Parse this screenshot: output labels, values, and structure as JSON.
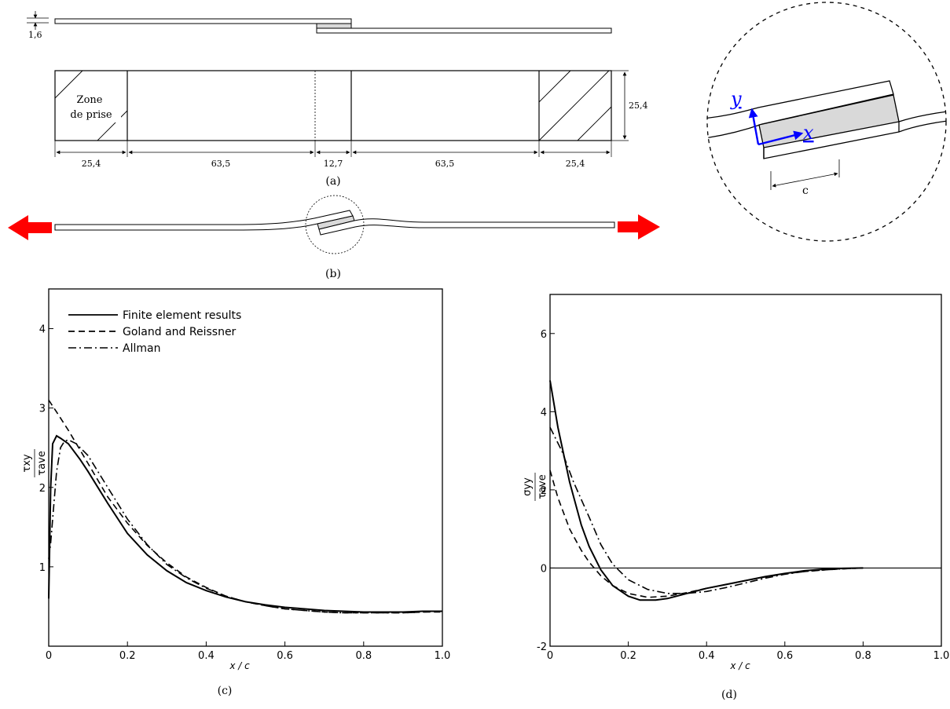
{
  "fig_a": {
    "thickness_label": "1,6",
    "grip_zone_line1": "Zone",
    "grip_zone_line2": "de prise",
    "width_label": "25,4",
    "dims": [
      "25,4",
      "63,5",
      "12,7",
      "63,5",
      "25,4"
    ],
    "caption": "(a)"
  },
  "fig_b": {
    "caption": "(b)"
  },
  "zoom": {
    "y_label": "y",
    "x_label": "x",
    "c_label": "c"
  },
  "colors": {
    "arrow": "#ff0000",
    "axis": "#0000ff",
    "adhesive": "#d9d9d9"
  },
  "chart_data": [
    {
      "type": "line",
      "caption": "(c)",
      "xlabel": "x / c",
      "ylabel_num": "τxy",
      "ylabel_den": "τave",
      "xlim": [
        0,
        1.0
      ],
      "ylim": [
        0,
        4.5
      ],
      "xticks": [
        "0",
        "0.2",
        "0.4",
        "0.6",
        "0.8",
        "1.0"
      ],
      "xtick_values": [
        0,
        0.2,
        0.4,
        0.6,
        0.8,
        1.0
      ],
      "yticks": [
        "1",
        "2",
        "3",
        "4"
      ],
      "ytick_values": [
        1,
        2,
        3,
        4
      ],
      "legend": [
        "Finite element results",
        "Goland and Reissner",
        "Allman"
      ],
      "series": [
        {
          "name": "Finite element results",
          "style": "solid",
          "x": [
            0,
            0.005,
            0.01,
            0.02,
            0.03,
            0.05,
            0.08,
            0.1,
            0.15,
            0.2,
            0.25,
            0.3,
            0.35,
            0.4,
            0.45,
            0.5,
            0.55,
            0.6,
            0.65,
            0.7,
            0.75,
            0.8,
            0.85,
            0.9,
            0.95,
            1.0
          ],
          "y": [
            0.6,
            2.0,
            2.55,
            2.65,
            2.62,
            2.55,
            2.35,
            2.2,
            1.8,
            1.42,
            1.15,
            0.95,
            0.8,
            0.7,
            0.62,
            0.56,
            0.52,
            0.49,
            0.47,
            0.45,
            0.44,
            0.43,
            0.43,
            0.43,
            0.44,
            0.44
          ]
        },
        {
          "name": "Goland and Reissner",
          "style": "dashed",
          "x": [
            0,
            0.02,
            0.05,
            0.1,
            0.15,
            0.2,
            0.25,
            0.3,
            0.35,
            0.4,
            0.45,
            0.5,
            0.55,
            0.6,
            0.65,
            0.7,
            0.75,
            0.8,
            0.85,
            0.9,
            0.95,
            1.0
          ],
          "y": [
            3.1,
            2.95,
            2.72,
            2.3,
            1.88,
            1.55,
            1.27,
            1.05,
            0.87,
            0.74,
            0.63,
            0.56,
            0.51,
            0.47,
            0.45,
            0.43,
            0.42,
            0.42,
            0.42,
            0.42,
            0.43,
            0.43
          ]
        },
        {
          "name": "Allman",
          "style": "dashdot",
          "x": [
            0,
            0.005,
            0.01,
            0.02,
            0.03,
            0.04,
            0.05,
            0.07,
            0.1,
            0.15,
            0.2,
            0.25,
            0.3,
            0.35,
            0.4,
            0.45,
            0.5,
            0.55,
            0.6,
            0.65,
            0.7,
            0.75,
            0.8,
            0.85,
            0.9,
            0.95,
            1.0
          ],
          "y": [
            1.1,
            1.3,
            1.6,
            2.2,
            2.5,
            2.58,
            2.6,
            2.55,
            2.4,
            2.0,
            1.6,
            1.28,
            1.03,
            0.86,
            0.73,
            0.63,
            0.56,
            0.51,
            0.47,
            0.45,
            0.43,
            0.42,
            0.42,
            0.42,
            0.42,
            0.43,
            0.44
          ]
        }
      ]
    },
    {
      "type": "line",
      "caption": "(d)",
      "xlabel": "x / c",
      "ylabel_num": "σyy",
      "ylabel_den": "τave",
      "xlim": [
        0,
        1.0
      ],
      "ylim": [
        -2,
        7
      ],
      "xticks": [
        "0",
        "0.2",
        "0.4",
        "0.6",
        "0.8",
        "1.0"
      ],
      "xtick_values": [
        0,
        0.2,
        0.4,
        0.6,
        0.8,
        1.0
      ],
      "yticks": [
        "-2",
        "0",
        "2",
        "4",
        "6"
      ],
      "ytick_values": [
        -2,
        0,
        2,
        4,
        6
      ],
      "series": [
        {
          "name": "Finite element results",
          "style": "solid",
          "x": [
            0,
            0.02,
            0.05,
            0.08,
            0.1,
            0.13,
            0.16,
            0.2,
            0.23,
            0.27,
            0.3,
            0.35,
            0.4,
            0.45,
            0.5,
            0.55,
            0.6,
            0.65,
            0.7,
            0.75,
            0.8
          ],
          "y": [
            4.8,
            3.6,
            2.2,
            1.1,
            0.55,
            -0.05,
            -0.45,
            -0.72,
            -0.82,
            -0.82,
            -0.78,
            -0.65,
            -0.52,
            -0.42,
            -0.32,
            -0.22,
            -0.14,
            -0.07,
            -0.03,
            -0.01,
            0.0
          ]
        },
        {
          "name": "Goland and Reissner",
          "style": "dashed",
          "x": [
            0,
            0.02,
            0.05,
            0.08,
            0.1,
            0.13,
            0.16,
            0.2,
            0.25,
            0.3,
            0.35,
            0.4,
            0.45,
            0.5,
            0.55,
            0.6,
            0.65,
            0.7,
            0.75,
            0.8
          ],
          "y": [
            2.5,
            1.8,
            1.0,
            0.45,
            0.15,
            -0.2,
            -0.45,
            -0.65,
            -0.75,
            -0.72,
            -0.63,
            -0.52,
            -0.42,
            -0.32,
            -0.23,
            -0.15,
            -0.09,
            -0.05,
            -0.02,
            0.0
          ]
        },
        {
          "name": "Allman",
          "style": "dashdot",
          "x": [
            0,
            0.03,
            0.06,
            0.1,
            0.13,
            0.16,
            0.2,
            0.25,
            0.3,
            0.35,
            0.4,
            0.45,
            0.5,
            0.55,
            0.6,
            0.65,
            0.7,
            0.75,
            0.8
          ],
          "y": [
            3.6,
            3.0,
            2.2,
            1.3,
            0.6,
            0.1,
            -0.3,
            -0.55,
            -0.65,
            -0.65,
            -0.6,
            -0.5,
            -0.38,
            -0.26,
            -0.16,
            -0.09,
            -0.05,
            -0.02,
            0.0
          ]
        }
      ]
    }
  ]
}
